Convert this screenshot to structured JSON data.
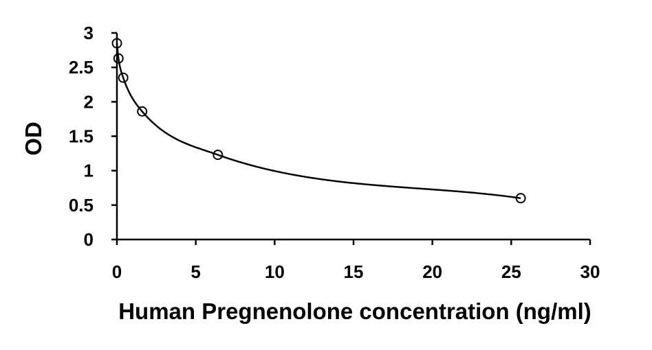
{
  "chart_data": {
    "type": "scatter",
    "title": "",
    "xlabel": "Human Pregnenolone concentration (ng/ml)",
    "ylabel": "OD",
    "xlim": [
      0,
      30
    ],
    "ylim": [
      0,
      3
    ],
    "x_ticks": [
      0,
      5,
      10,
      15,
      20,
      25,
      30
    ],
    "y_ticks": [
      0,
      0.5,
      1,
      1.5,
      2,
      2.5,
      3
    ],
    "x_tick_labels": [
      "0",
      "5",
      "10",
      "15",
      "20",
      "25",
      "30"
    ],
    "y_tick_labels": [
      "0",
      "0.5",
      "1",
      "1.5",
      "2",
      "2.5",
      "3"
    ],
    "grid": false,
    "legend": "none",
    "series": [
      {
        "points": [
          {
            "x": 0,
            "y": 2.85
          },
          {
            "x": 0.1,
            "y": 2.63
          },
          {
            "x": 0.4,
            "y": 2.35
          },
          {
            "x": 1.6,
            "y": 1.86
          },
          {
            "x": 6.4,
            "y": 1.23
          },
          {
            "x": 25.6,
            "y": 0.6
          }
        ],
        "marker": "open-circle",
        "fit": "smooth-curve",
        "color": "#000000"
      }
    ]
  }
}
